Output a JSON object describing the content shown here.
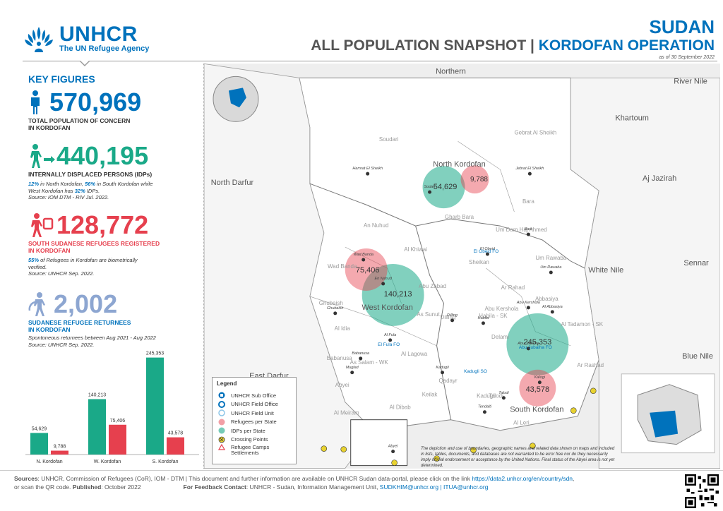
{
  "header": {
    "org_name": "UNHCR",
    "org_tagline": "The UN Refugee Agency",
    "country": "SUDAN",
    "title_main": "ALL POPULATION SNAPSHOT",
    "title_sep": " | ",
    "title_operation": "KORDOFAN OPERATION",
    "date": "as of 30 September 2022"
  },
  "key_figures": {
    "title": "KEY FIGURES",
    "total": {
      "value": "570,969",
      "label_line1": "TOTAL POPULATION OF CONCERN",
      "label_line2": "IN KORDOFAN"
    },
    "idps": {
      "value": "440,195",
      "label": "INTERNALLY DISPLACED PERSONS (IDPs)",
      "note_p1": "12%",
      "note_t1": " in North Kordofan, ",
      "note_p2": "56%",
      "note_t2": " in South Kordofan while",
      "note_line2a": "West Kordofan has ",
      "note_p3": "32%",
      "note_line2b": " IDPs.",
      "source": "Source: IOM DTM - RIV Jul. 2022."
    },
    "refugees": {
      "value": "128,772",
      "label_line1": "SOUTH SUDANESE REFUGEES REGISTERED",
      "label_line2": "IN KORDOFAN",
      "note_p1": "55%",
      "note_t1": " of Refugees in Kordofan are biometrically",
      "note_line2": "verified.",
      "source": "Source: UNHCR Sep. 2022."
    },
    "returnees": {
      "value": "2,002",
      "label_line1": "SUDANESE REFUGEE RETURNEES",
      "label_line2": "IN KORDOFAN",
      "note": "Spontoneous returnees between Aug 2021 - Aug 2022",
      "source": "Source: UNHCR Sep. 2022."
    }
  },
  "colors": {
    "blue": "#0072bc",
    "idp_green": "#1aa988",
    "refugee_red": "#e6404e",
    "returnee_lavender": "#8da6d1"
  },
  "chart_data": {
    "type": "bar",
    "categories": [
      "N. Kordofan",
      "W. Kordofan",
      "S. Kordofan"
    ],
    "series": [
      {
        "values": [
          54629,
          140213,
          245353
        ],
        "color": "#1aa988"
      },
      {
        "values": [
          9788,
          75406,
          43578
        ],
        "color": "#e6404e"
      }
    ],
    "value_labels": [
      [
        "54,629",
        "140,213",
        "245,353"
      ],
      [
        "9,788",
        "75,406",
        "43,578"
      ]
    ],
    "ylim": [
      0,
      250000
    ]
  },
  "map": {
    "regions": [
      "Northern",
      "River Nile",
      "Khartoum",
      "North Darfur",
      "Aj Jazirah",
      "White Nile",
      "Sennar",
      "Blue Nile",
      "East Darfur"
    ],
    "states": [
      "North Kordofan",
      "West Kordofan",
      "South Kordofan"
    ],
    "localities": [
      "Soudari",
      "Gebrat Al Sheikh",
      "Bara",
      "Gharb Bara",
      "Um Dam Haj Ahmed",
      "An Nuhud",
      "Al Khiwai",
      "Sheikan",
      "Um Rawaba",
      "Wad Banda",
      "Abu Zabad",
      "Ar Rahad",
      "Ghubaish",
      "As Sunut",
      "Abbasiya",
      "Al Idia",
      "Dilling",
      "Habila - SK",
      "Abu Kershola",
      "Al Tadamon - SK",
      "Keilak",
      "Al Lagowa",
      "Delami",
      "Ar Rashad",
      "Babanusa",
      "As Salam - WK",
      "Abyei",
      "Kadugli",
      "Talodi",
      "Al Meiram",
      "Al Dibab",
      "Al Leri",
      "Qadayr"
    ],
    "towns": [
      "Hamrat El Sheikh",
      "Jebrat El Sheikh",
      "Sodari",
      "Bara",
      "El Obeid",
      "Um Rawaba",
      "Wad Banda",
      "En Nahud",
      "Ghubaish",
      "Al Fula",
      "Babanusa",
      "Muglad",
      "Abu Jubaiha",
      "Kadugli",
      "Abyei",
      "Talodi",
      "Habila",
      "Dilling",
      "Kalogi",
      "Abu Kershola",
      "Al Abbasiya",
      "Tendalti"
    ],
    "bubbles": [
      {
        "state": "North Kordofan",
        "idps": "54,629",
        "refugees": "9,788"
      },
      {
        "state": "West Kordofan",
        "idps": "140,213",
        "refugees": "75,406"
      },
      {
        "state": "South Kordofan",
        "idps": "245,353",
        "refugees": "43,578"
      }
    ],
    "offices": [
      "El Obeid FO",
      "El Fula FO",
      "Kadugli SO",
      "Abu Jubaiha FO"
    ]
  },
  "legend": {
    "title": "Legend",
    "items": [
      {
        "label": "UNHCR Sub Office"
      },
      {
        "label": "UNHCR Field Office"
      },
      {
        "label": "UNHCR Field Unit"
      },
      {
        "label": "Refugees per State"
      },
      {
        "label": "IDPs per State"
      },
      {
        "label": "Crossing Points"
      },
      {
        "label": "Refugee Camps"
      },
      {
        "label": "Settlements"
      }
    ]
  },
  "disclaimer": "The depiction and use of boundaries, geographic names and related data shown on maps and included in lists, tables, documents, and databases are not warranted to be error free nor do they necessarily imply official endorsement or acceptance by the United Nations. Final status of the Abyei area is not yet determined.",
  "footer": {
    "sources_label": "Sources",
    "sources_text": ": UNHCR, Commission of Refugees (CoR), IOM - DTM | This document and further information are available on UNHCR Sudan data-portal, please click on the link ",
    "link": "https://data2.unhcr.org/en/country/sdn",
    "sources_tail": ",",
    "line2a": "or scan the QR code. ",
    "published_label": "Published",
    "published": ": October 2022",
    "feedback_label": "For Feedback Contact",
    "feedback_text": ": UNHCR - Sudan, Information Management Unit, ",
    "email1": "SUDKHIM@unhcr.org",
    "email_sep": " | ",
    "email2": "ITUA@unhcr.org"
  }
}
